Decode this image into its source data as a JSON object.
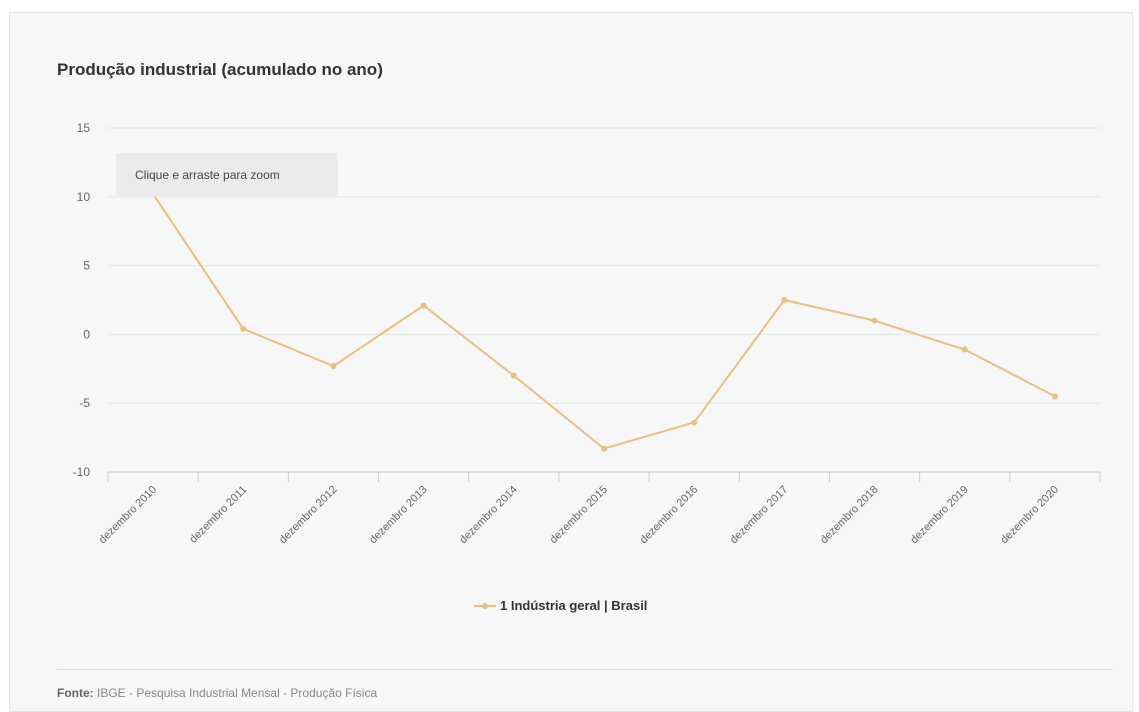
{
  "colors": {
    "series": "#e8c082",
    "grid": "#e6e6e6",
    "axis": "#cccccc",
    "panel": "#f7f7f7"
  },
  "zoom_hint": "Clique e arraste para zoom",
  "source": {
    "label": "Fonte:",
    "text": "IBGE - Pesquisa Industrial Mensal - Produção Física"
  },
  "chart_data": {
    "type": "line",
    "title": "Produção industrial (acumulado no ano)",
    "categories": [
      "dezembro 2010",
      "dezembro 2011",
      "dezembro 2012",
      "dezembro 2013",
      "dezembro 2014",
      "dezembro 2015",
      "dezembro 2016",
      "dezembro 2017",
      "dezembro 2018",
      "dezembro 2019",
      "dezembro 2020"
    ],
    "series": [
      {
        "name": "1 Indústria geral | Brasil",
        "values": [
          10.2,
          0.4,
          -2.3,
          2.1,
          -3.0,
          -8.3,
          -6.4,
          2.5,
          1.0,
          -1.1,
          -4.5
        ]
      }
    ],
    "ylim": [
      -10,
      15
    ],
    "yticks": [
      15,
      10,
      5,
      0,
      -5,
      -10
    ],
    "grid": true,
    "legend_position": "bottom-center"
  }
}
